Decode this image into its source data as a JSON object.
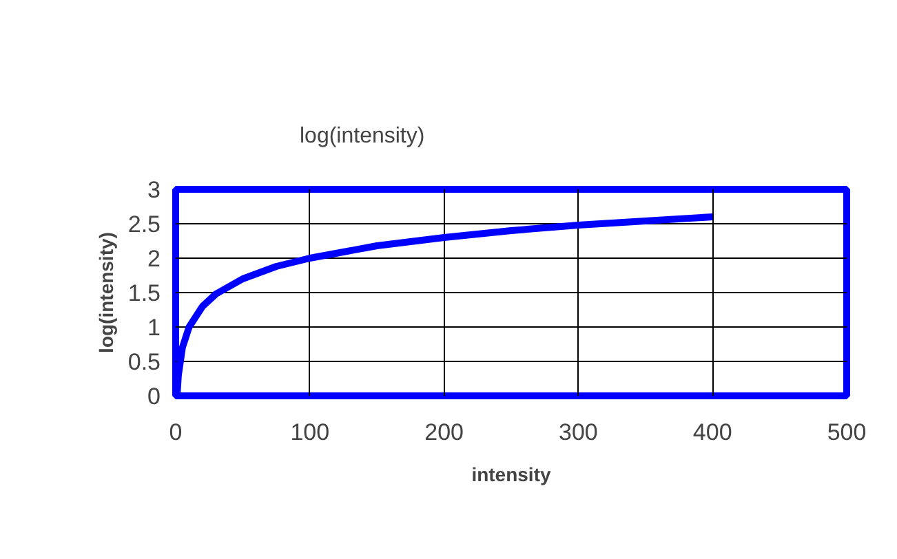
{
  "chart_data": {
    "type": "line",
    "title": "log(intensity)",
    "xlabel": "intensity",
    "ylabel": "log(intensity)",
    "x": [
      1,
      2,
      5,
      10,
      20,
      30,
      50,
      75,
      100,
      150,
      200,
      250,
      300,
      350,
      400
    ],
    "series": [
      {
        "color": "#0000ff",
        "values": [
          0,
          0.3,
          0.7,
          1,
          1.3,
          1.48,
          1.7,
          1.88,
          2,
          2.18,
          2.3,
          2.4,
          2.48,
          2.54,
          2.6
        ]
      }
    ],
    "xlim": [
      0,
      500
    ],
    "xticks": [
      0,
      100,
      200,
      300,
      400,
      500
    ],
    "ylim": [
      0,
      3
    ],
    "yticks": [
      0,
      0.5,
      1,
      1.5,
      2,
      2.5,
      3
    ],
    "grid": true,
    "marker": "none",
    "line_style": "solid"
  }
}
